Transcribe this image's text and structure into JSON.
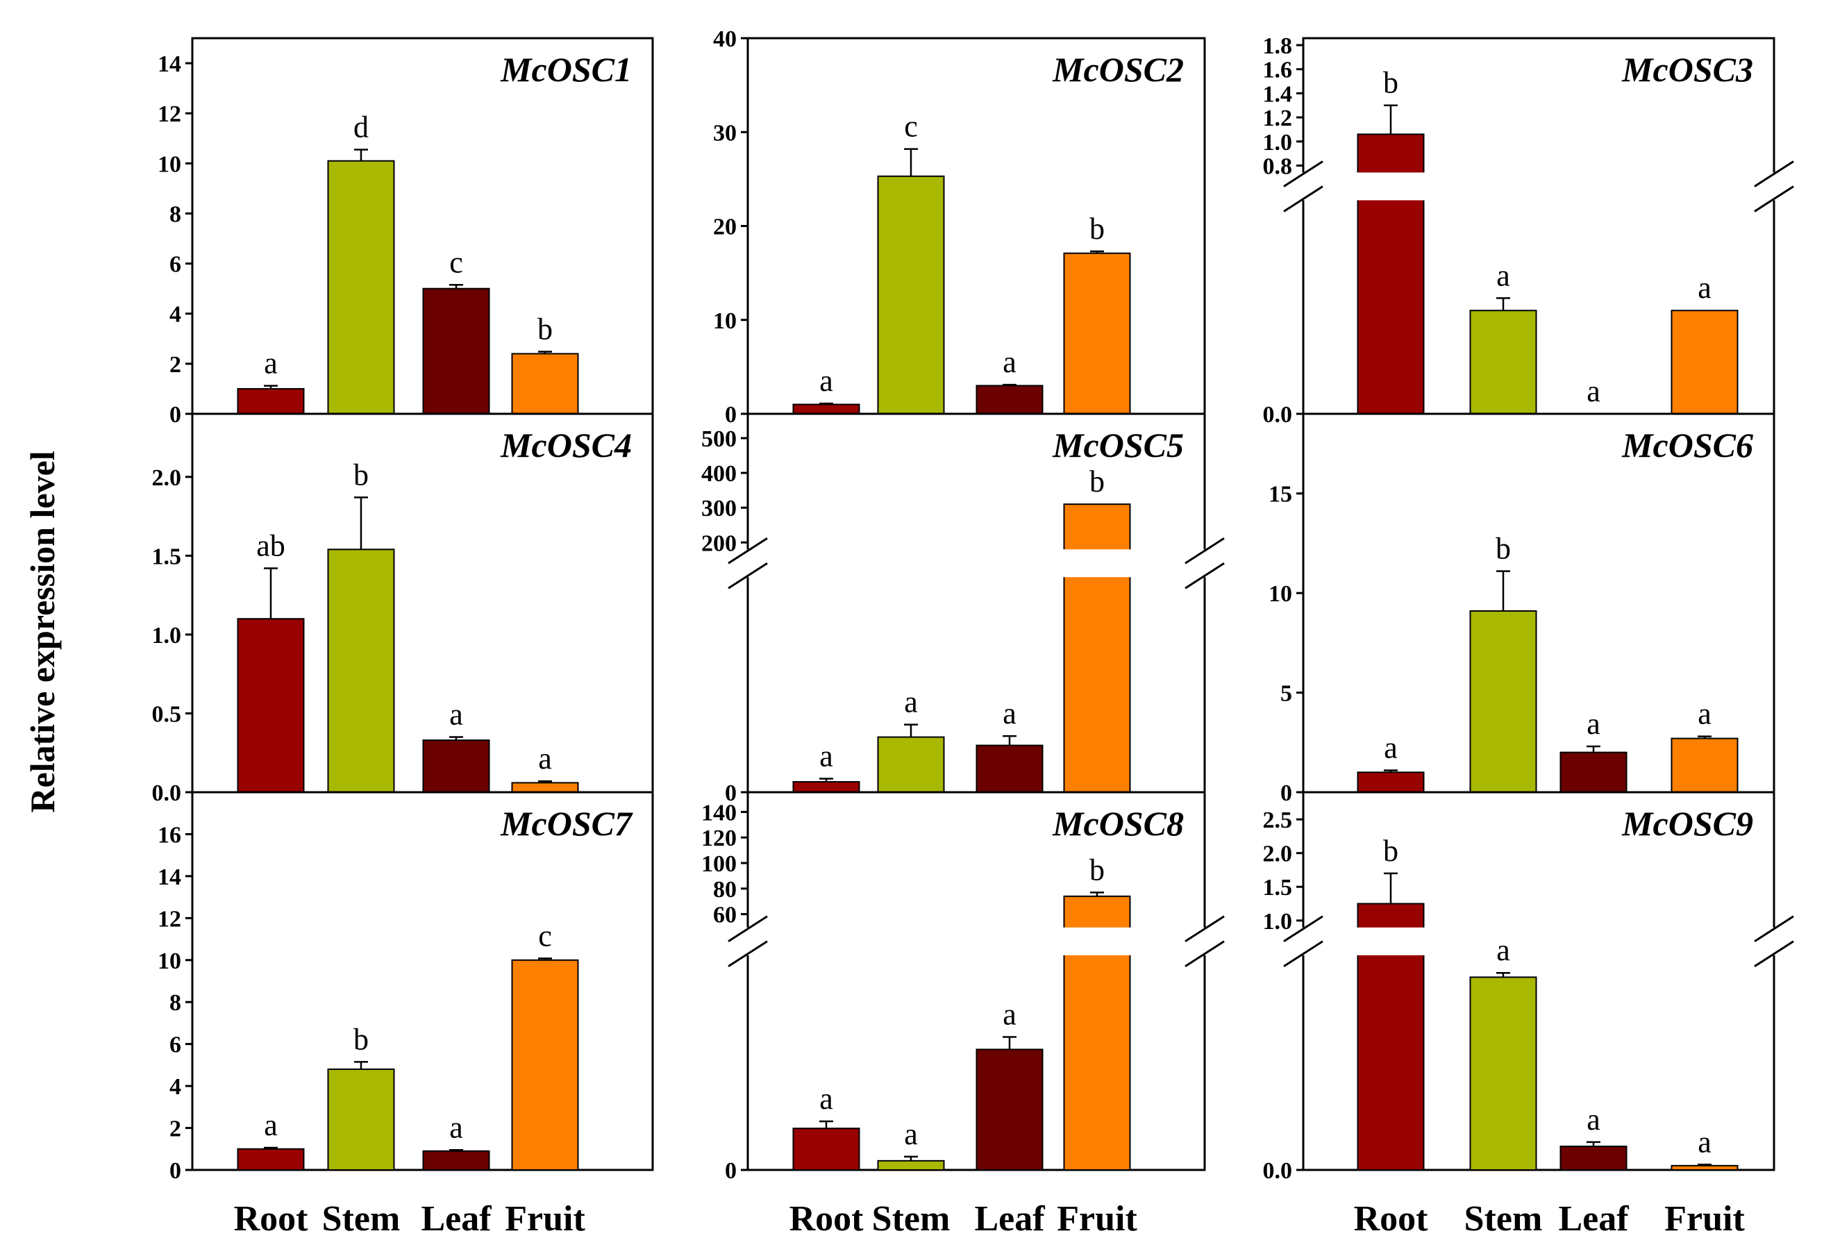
{
  "figure": {
    "ylabel": "Relative expression level",
    "categories": [
      "Root",
      "Stem",
      "Leaf",
      "Fruit"
    ],
    "colors": {
      "Root": "#990000",
      "Stem": "#a9b800",
      "Leaf": "#6b0000",
      "Fruit": "#ff8000"
    }
  },
  "chart_data": [
    {
      "type": "bar",
      "title": "McOSC1",
      "categories": [
        "Root",
        "Stem",
        "Leaf",
        "Fruit"
      ],
      "values": [
        1.0,
        10.1,
        5.0,
        2.4
      ],
      "errors": [
        0.12,
        0.45,
        0.15,
        0.08
      ],
      "letters": [
        "a",
        "d",
        "c",
        "b"
      ],
      "ylim": [
        0,
        15
      ],
      "yticks": [
        0,
        2,
        4,
        6,
        8,
        10,
        12,
        14
      ],
      "ytick_labels": [
        "0",
        "2",
        "4",
        "6",
        "8",
        "10",
        "12",
        "14"
      ],
      "xlabel": "",
      "ylabel": "Relative expression level"
    },
    {
      "type": "bar",
      "title": "McOSC2",
      "categories": [
        "Root",
        "Stem",
        "Leaf",
        "Fruit"
      ],
      "values": [
        1.0,
        25.3,
        3.0,
        17.1
      ],
      "errors": [
        0.1,
        2.9,
        0.1,
        0.2
      ],
      "letters": [
        "a",
        "c",
        "a",
        "b"
      ],
      "ylim": [
        0,
        40
      ],
      "yticks": [
        0,
        10,
        20,
        30,
        40
      ],
      "ytick_labels": [
        "0",
        "10",
        "20",
        "30",
        "40"
      ]
    },
    {
      "type": "bar",
      "title": "McOSC3",
      "categories": [
        "Root",
        "Stem",
        "Leaf",
        "Fruit"
      ],
      "values": [
        1.06,
        0.05,
        0.0,
        0.05
      ],
      "errors": [
        0.24,
        0.006,
        0,
        0
      ],
      "letters": [
        "b",
        "a",
        "a",
        "a"
      ],
      "axis_break": [
        0.1,
        0.8
      ],
      "ylim": [
        0,
        1.8
      ],
      "yticks": [
        0.0,
        0.8,
        1.0,
        1.2,
        1.4,
        1.6,
        1.8
      ],
      "ytick_labels": [
        "0.0",
        "0.8",
        "1.0",
        "1.2",
        "1.4",
        "1.6",
        "1.8"
      ]
    },
    {
      "type": "bar",
      "title": "McOSC4",
      "categories": [
        "Root",
        "Stem",
        "Leaf",
        "Fruit"
      ],
      "values": [
        1.1,
        1.54,
        0.33,
        0.06
      ],
      "errors": [
        0.32,
        0.33,
        0.02,
        0.01
      ],
      "letters": [
        "ab",
        "b",
        "a",
        "a"
      ],
      "ylim": [
        0,
        2.4
      ],
      "yticks": [
        0.0,
        0.5,
        1.0,
        1.5,
        2.0
      ],
      "ytick_labels": [
        "0.0",
        "0.5",
        "1.0",
        "1.5",
        "2.0"
      ]
    },
    {
      "type": "bar",
      "title": "McOSC5",
      "categories": [
        "Root",
        "Stem",
        "Leaf",
        "Fruit"
      ],
      "values": [
        1.0,
        5.3,
        4.5,
        310
      ],
      "errors": [
        0.3,
        1.2,
        0.9,
        0
      ],
      "letters": [
        "a",
        "a",
        "a",
        "b"
      ],
      "axis_break": [
        20,
        200
      ],
      "ylim": [
        0,
        550
      ],
      "yticks": [
        0,
        200,
        300,
        400,
        500
      ],
      "ytick_labels": [
        "0",
        "200",
        "300",
        "400",
        "500"
      ]
    },
    {
      "type": "bar",
      "title": "McOSC6",
      "categories": [
        "Root",
        "Stem",
        "Leaf",
        "Fruit"
      ],
      "values": [
        1.0,
        9.1,
        2.0,
        2.7
      ],
      "errors": [
        0.1,
        2.0,
        0.3,
        0.1
      ],
      "letters": [
        "a",
        "b",
        "a",
        "a"
      ],
      "ylim": [
        0,
        19
      ],
      "yticks": [
        0,
        5,
        10,
        15
      ],
      "ytick_labels": [
        "0",
        "5",
        "10",
        "15"
      ]
    },
    {
      "type": "bar",
      "title": "McOSC7",
      "categories": [
        "Root",
        "Stem",
        "Leaf",
        "Fruit"
      ],
      "values": [
        1.0,
        4.8,
        0.9,
        10.0
      ],
      "errors": [
        0.06,
        0.35,
        0.05,
        0.08
      ],
      "letters": [
        "a",
        "b",
        "a",
        "c"
      ],
      "ylim": [
        0,
        18
      ],
      "yticks": [
        0,
        2,
        4,
        6,
        8,
        10,
        12,
        14,
        16
      ],
      "ytick_labels": [
        "0",
        "2",
        "4",
        "6",
        "8",
        "10",
        "12",
        "14",
        "16"
      ]
    },
    {
      "type": "bar",
      "title": "McOSC8",
      "categories": [
        "Root",
        "Stem",
        "Leaf",
        "Fruit"
      ],
      "values": [
        1.0,
        0.22,
        2.9,
        74
      ],
      "errors": [
        0.17,
        0.1,
        0.3,
        3.0
      ],
      "letters": [
        "a",
        "a",
        "a",
        "b"
      ],
      "axis_break": [
        5,
        55
      ],
      "ylim": [
        0,
        150
      ],
      "yticks": [
        0,
        60,
        80,
        100,
        120,
        140
      ],
      "ytick_labels": [
        "0",
        "60",
        "80",
        "100",
        "120",
        "140"
      ]
    },
    {
      "type": "bar",
      "title": "McOSC9",
      "categories": [
        "Root",
        "Stem",
        "Leaf",
        "Fruit"
      ],
      "values": [
        1.25,
        0.9,
        0.11,
        0.02
      ],
      "errors": [
        0.45,
        0.02,
        0.02,
        0.005
      ],
      "letters": [
        "b",
        "a",
        "a",
        "a"
      ],
      "axis_break": [
        0.97,
        1.0
      ],
      "ylim": [
        0,
        2.8
      ],
      "yticks": [
        0.0,
        1.0,
        1.5,
        2.0,
        2.5
      ],
      "ytick_labels": [
        "0.0",
        "1.0",
        "1.5",
        "2.0",
        "2.5"
      ]
    }
  ]
}
